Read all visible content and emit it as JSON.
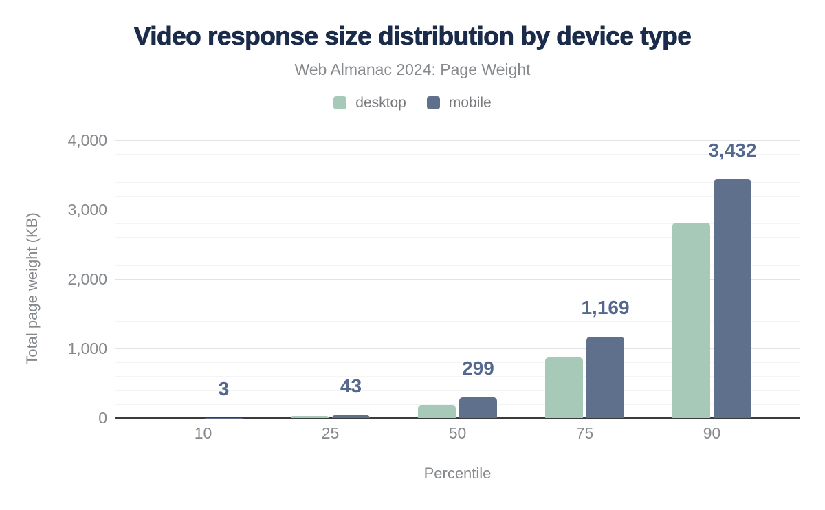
{
  "header": {
    "title": "Video response size distribution by device type",
    "subtitle": "Web Almanac 2024: Page Weight"
  },
  "legend": {
    "items": [
      {
        "label": "desktop",
        "color": "#a7c9b7"
      },
      {
        "label": "mobile",
        "color": "#5e708c"
      }
    ]
  },
  "chart_data": {
    "type": "bar",
    "title": "Video response size distribution by device type",
    "subtitle": "Web Almanac 2024: Page Weight",
    "xlabel": "Percentile",
    "ylabel": "Total page weight (KB)",
    "categories": [
      "10",
      "25",
      "50",
      "75",
      "90"
    ],
    "series": [
      {
        "name": "desktop",
        "color": "#a7c9b7",
        "values": [
          0,
          28,
          185,
          875,
          2815
        ],
        "values_estimated_from_bar_heights": true
      },
      {
        "name": "mobile",
        "color": "#5e708c",
        "values": [
          3,
          43,
          299,
          1169,
          3432
        ],
        "value_labels": [
          "3",
          "43",
          "299",
          "1,169",
          "3,432"
        ]
      }
    ],
    "ylim": [
      0,
      4000
    ],
    "yticks": [
      {
        "value": 4000,
        "label": "4,000"
      },
      {
        "value": 3000,
        "label": "3,000"
      },
      {
        "value": 2000,
        "label": "2,000"
      },
      {
        "value": 1000,
        "label": "1,000"
      },
      {
        "value": 0,
        "label": "0"
      }
    ],
    "grid": {
      "major_step": 1000,
      "minor_step": 200
    },
    "legend_position": "top",
    "value_label_color": "#54688f"
  },
  "colors": {
    "background": "#ffffff",
    "title": "#1b2b4a",
    "subtitle": "#86898d",
    "axis_text": "#85888c",
    "legend_text": "#77797c",
    "value_label": "#54688f",
    "axis_line": "#3b3b3b",
    "grid_major": "#e2e2e2",
    "grid_minor": "#f4f4f4",
    "series_desktop": "#a7c9b7",
    "series_mobile": "#5e708c"
  }
}
